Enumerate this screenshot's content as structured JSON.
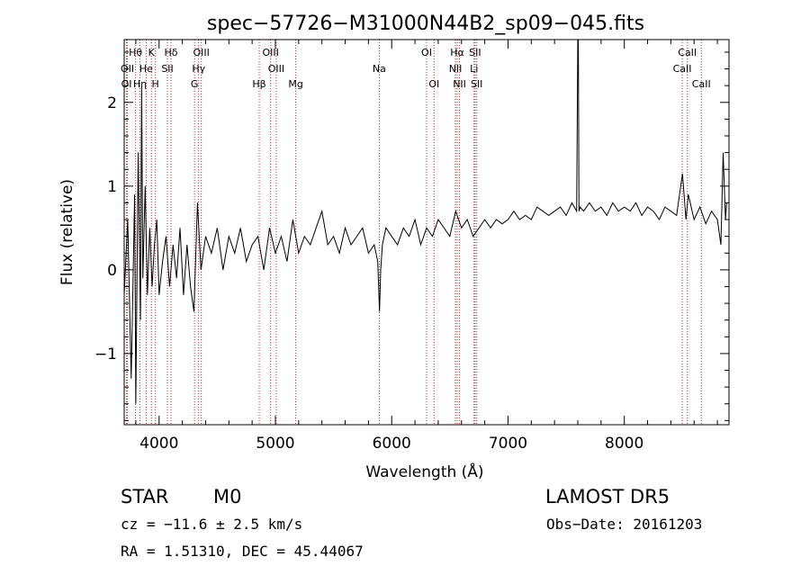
{
  "chart_data": {
    "type": "line",
    "title": "spec−57726−M31000N44B2_sp09−045.fits",
    "xlabel": "Wavelength (Å)",
    "ylabel": "Flux (relative)",
    "xlim": [
      3700,
      8900
    ],
    "ylim": [
      -1.85,
      2.75
    ],
    "xticks": [
      4000,
      5000,
      6000,
      7000,
      8000
    ],
    "yticks": [
      -1,
      0,
      1,
      2
    ],
    "ytick_labels": [
      "−1",
      "0",
      "1",
      "2"
    ],
    "grid": false,
    "line_color": "#000000",
    "marker_line_color": "#b03030",
    "series": [
      {
        "x": [
          3700,
          3730,
          3760,
          3790,
          3800,
          3820,
          3840,
          3850,
          3860,
          3880,
          3900,
          3920,
          3940,
          3960,
          3980,
          4000,
          4030,
          4060,
          4090,
          4120,
          4150,
          4180,
          4210,
          4240,
          4270,
          4300,
          4330,
          4360,
          4400,
          4450,
          4500,
          4550,
          4600,
          4650,
          4700,
          4750,
          4800,
          4850,
          4900,
          4950,
          5000,
          5050,
          5100,
          5150,
          5200,
          5250,
          5300,
          5350,
          5400,
          5450,
          5500,
          5550,
          5600,
          5650,
          5700,
          5750,
          5800,
          5850,
          5880,
          5895,
          5905,
          5920,
          5950,
          6000,
          6050,
          6100,
          6150,
          6200,
          6250,
          6300,
          6350,
          6400,
          6450,
          6500,
          6550,
          6600,
          6650,
          6700,
          6750,
          6800,
          6850,
          6900,
          6950,
          7000,
          7050,
          7100,
          7150,
          7200,
          7250,
          7300,
          7350,
          7400,
          7450,
          7500,
          7550,
          7590,
          7600,
          7605,
          7610,
          7620,
          7650,
          7700,
          7750,
          7800,
          7850,
          7900,
          7950,
          8000,
          8050,
          8100,
          8150,
          8200,
          8250,
          8300,
          8350,
          8400,
          8450,
          8500,
          8530,
          8550,
          8600,
          8650,
          8700,
          8750,
          8800,
          8830,
          8850,
          8870,
          8880
        ],
        "y": [
          -0.3,
          0.6,
          -1.3,
          0.9,
          -1.6,
          1.4,
          -0.6,
          2.2,
          -0.1,
          1.0,
          -0.3,
          0.5,
          -0.2,
          0.3,
          0.6,
          -0.3,
          0.1,
          0.4,
          -0.2,
          0.3,
          -0.1,
          0.5,
          -0.3,
          0.3,
          -0.2,
          -0.5,
          0.8,
          0.0,
          0.4,
          0.2,
          0.5,
          0.0,
          0.4,
          0.2,
          0.5,
          0.1,
          0.3,
          0.4,
          0.0,
          0.5,
          0.2,
          0.4,
          0.1,
          0.6,
          0.2,
          0.4,
          0.3,
          0.5,
          0.7,
          0.3,
          0.4,
          0.2,
          0.5,
          0.3,
          0.4,
          0.5,
          0.2,
          0.3,
          0.1,
          -0.5,
          0.0,
          0.3,
          0.5,
          0.4,
          0.3,
          0.5,
          0.4,
          0.6,
          0.3,
          0.5,
          0.4,
          0.6,
          0.5,
          0.4,
          0.7,
          0.5,
          0.6,
          0.4,
          0.5,
          0.6,
          0.5,
          0.6,
          0.55,
          0.6,
          0.7,
          0.6,
          0.65,
          0.6,
          0.75,
          0.7,
          0.65,
          0.7,
          0.75,
          0.65,
          0.8,
          0.7,
          2.8,
          2.8,
          0.7,
          0.75,
          0.7,
          0.8,
          0.7,
          0.75,
          0.65,
          0.8,
          0.7,
          0.75,
          0.7,
          0.8,
          0.65,
          0.75,
          0.7,
          0.6,
          0.75,
          0.7,
          0.65,
          1.15,
          0.6,
          0.9,
          0.6,
          0.75,
          0.55,
          0.7,
          0.6,
          0.3,
          1.4,
          0.6,
          0.8
        ]
      }
    ],
    "line_markers": [
      {
        "label": "Hθ",
        "wavelength": 3798,
        "row": 0
      },
      {
        "label": "K",
        "wavelength": 3934,
        "row": 0
      },
      {
        "label": "Hδ",
        "wavelength": 4102,
        "row": 0
      },
      {
        "label": "OIII",
        "wavelength": 4363,
        "row": 0
      },
      {
        "label": "OIII",
        "wavelength": 4959,
        "row": 0
      },
      {
        "label": "OI",
        "wavelength": 6300,
        "row": 0
      },
      {
        "label": "Hα",
        "wavelength": 6563,
        "row": 0
      },
      {
        "label": "SII",
        "wavelength": 6717,
        "row": 0
      },
      {
        "label": "CaII",
        "wavelength": 8542,
        "row": 0
      },
      {
        "label": "OII",
        "wavelength": 3727,
        "row": 1
      },
      {
        "label": "He",
        "wavelength": 3889,
        "row": 1
      },
      {
        "label": "SII",
        "wavelength": 4072,
        "row": 1
      },
      {
        "label": "Hγ",
        "wavelength": 4340,
        "row": 1
      },
      {
        "label": "OIII",
        "wavelength": 5007,
        "row": 1
      },
      {
        "label": "NII",
        "wavelength": 6548,
        "row": 1
      },
      {
        "label": "Li",
        "wavelength": 6708,
        "row": 1
      },
      {
        "label": "CaII",
        "wavelength": 8498,
        "row": 1
      },
      {
        "label": "OI",
        "wavelength": 3720,
        "row": 2
      },
      {
        "label": "Hη",
        "wavelength": 3835,
        "row": 2
      },
      {
        "label": "H",
        "wavelength": 3968,
        "row": 2
      },
      {
        "label": "G",
        "wavelength": 4305,
        "row": 2
      },
      {
        "label": "Hβ",
        "wavelength": 4861,
        "row": 2
      },
      {
        "label": "Mg",
        "wavelength": 5175,
        "row": 2
      },
      {
        "label": "Na",
        "wavelength": 5893,
        "row": 1
      },
      {
        "label": "OI",
        "wavelength": 6364,
        "row": 2
      },
      {
        "label": "NII",
        "wavelength": 6583,
        "row": 2
      },
      {
        "label": "SII",
        "wavelength": 6731,
        "row": 2
      },
      {
        "label": "CaII",
        "wavelength": 8662,
        "row": 2
      }
    ]
  },
  "info": {
    "class": "STAR",
    "subclass": "M0",
    "survey": "LAMOST  DR5",
    "cz": "cz = −11.6 ± 2.5 km/s",
    "obs_date": "Obs−Date: 20161203",
    "coords": "RA =   1.51310, DEC =  45.44067"
  }
}
